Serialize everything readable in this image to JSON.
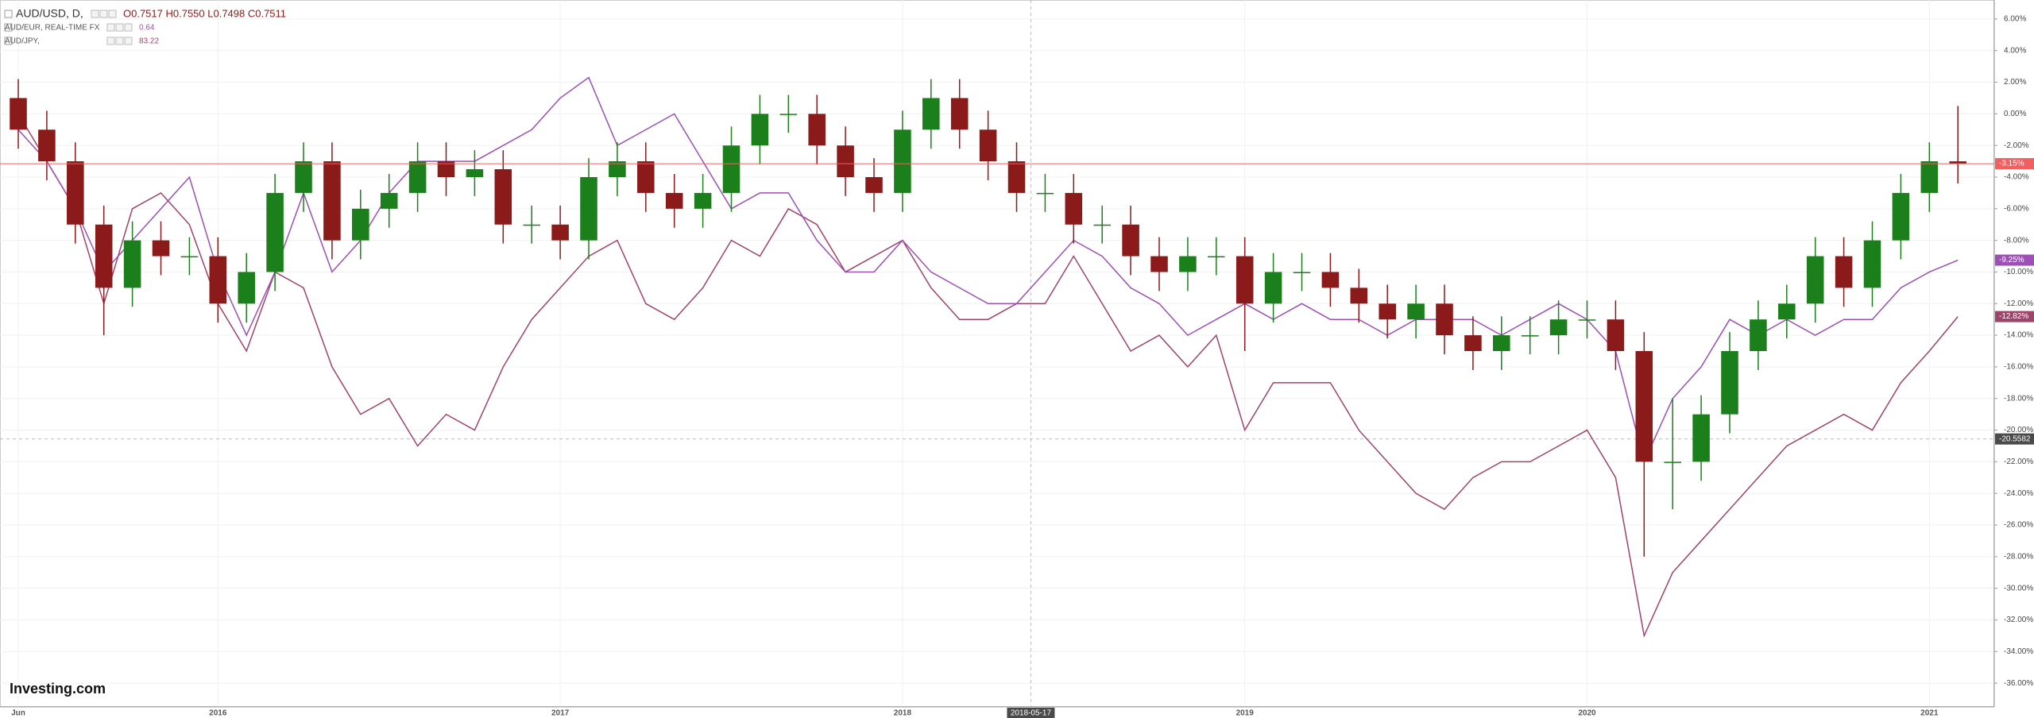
{
  "chart_data": {
    "type": "candlestick",
    "categories": [
      "Jun",
      null,
      null,
      null,
      null,
      null,
      null,
      "2016",
      null,
      null,
      null,
      null,
      null,
      null,
      null,
      null,
      null,
      null,
      null,
      "2017",
      null,
      null,
      null,
      null,
      null,
      null,
      null,
      null,
      null,
      null,
      null,
      "2018",
      null,
      null,
      null,
      null,
      null,
      null,
      null,
      null,
      null,
      null,
      null,
      "2019",
      null,
      null,
      null,
      null,
      null,
      null,
      null,
      null,
      null,
      null,
      null,
      "2020",
      null,
      null,
      null,
      null,
      null,
      null,
      null,
      null,
      null,
      null,
      null,
      "2021",
      null
    ],
    "series": [
      {
        "name": "AUD/USD, D,",
        "type": "candlestick",
        "up_color": "#1b7f1b",
        "down_color": "#8b1a1a",
        "quote": "O0.7517  H0.7550  L0.7498  C0.7511",
        "last_label": "-3.15%",
        "price_line_color": "#f06060",
        "open": [
          1,
          -1,
          -3,
          -7,
          -11,
          -8,
          -9,
          -9,
          -12,
          -10,
          -5,
          -3,
          -8,
          -6,
          -5,
          -3,
          -4,
          -3.5,
          -7,
          -7,
          -8,
          -4,
          -3,
          -5,
          -6,
          -5,
          -2,
          0,
          0,
          -2,
          -4,
          -5,
          -1,
          1,
          -1,
          -3,
          -5,
          -5,
          -7,
          -7,
          -9,
          -10,
          -9,
          -9,
          -12,
          -10,
          -10,
          -11,
          -12,
          -13,
          -12,
          -14,
          -15,
          -14,
          -14,
          -13,
          -13,
          -15,
          -22,
          -22,
          -19,
          -15,
          -13,
          -12,
          -9,
          -11,
          -8,
          -5,
          -3
        ],
        "high": [
          2.2,
          0.2,
          -1.8,
          -5.8,
          -6.8,
          -6.8,
          -7.8,
          -7.8,
          -8.8,
          -3.8,
          -1.8,
          -1.8,
          -4.8,
          -3.8,
          -1.8,
          -1.8,
          -2.3,
          -2.3,
          -5.8,
          -5.8,
          -2.8,
          -1.8,
          -1.8,
          -3.8,
          -3.8,
          -0.8,
          1.2,
          1.2,
          1.2,
          -0.8,
          -2.8,
          0.2,
          2.2,
          2.2,
          0.2,
          -1.8,
          -3.8,
          -3.8,
          -5.8,
          -5.8,
          -7.8,
          -7.8,
          -7.8,
          -7.8,
          -8.8,
          -8.8,
          -8.8,
          -9.8,
          -10.8,
          -10.8,
          -10.8,
          -12.8,
          -12.8,
          -12.8,
          -11.8,
          -11.8,
          -11.8,
          -13.8,
          -18,
          -17.8,
          -13.8,
          -11.8,
          -10.8,
          -7.8,
          -7.8,
          -6.8,
          -3.8,
          -1.8,
          0.5
        ],
        "low": [
          -2.2,
          -4.2,
          -8.2,
          -14,
          -12.2,
          -10.2,
          -10.2,
          -13.2,
          -13.2,
          -11.2,
          -6.2,
          -9.2,
          -9.2,
          -7.2,
          -6.2,
          -5.2,
          -5.2,
          -8.2,
          -8.2,
          -9.2,
          -9.2,
          -5.2,
          -6.2,
          -7.2,
          -7.2,
          -6.2,
          -3.2,
          -1.2,
          -3.2,
          -5.2,
          -6.2,
          -6.2,
          -2.2,
          -2.2,
          -4.2,
          -6.2,
          -6.2,
          -8.2,
          -8.2,
          -10.2,
          -11.2,
          -11.2,
          -10.2,
          -15,
          -13.2,
          -11.2,
          -12.2,
          -13.2,
          -14.2,
          -14.2,
          -15.2,
          -16.2,
          -16.2,
          -15.2,
          -15.2,
          -14.2,
          -16.2,
          -28,
          -25,
          -23.2,
          -20.2,
          -16.2,
          -14.2,
          -13.2,
          -12.2,
          -12.2,
          -9.2,
          -6.2,
          -4.4
        ],
        "close": [
          -1,
          -3,
          -7,
          -11,
          -8,
          -9,
          -9,
          -12,
          -10,
          -5,
          -3,
          -8,
          -6,
          -5,
          -3,
          -4,
          -3.5,
          -7,
          -7,
          -8,
          -4,
          -3,
          -5,
          -6,
          -5,
          -2,
          0,
          0,
          -2,
          -4,
          -5,
          -1,
          1,
          -1,
          -3,
          -5,
          -5,
          -7,
          -7,
          -9,
          -10,
          -9,
          -9,
          -12,
          -10,
          -10,
          -11,
          -12,
          -13,
          -12,
          -14,
          -15,
          -14,
          -14,
          -13,
          -13,
          -15,
          -22,
          -22,
          -19,
          -15,
          -13,
          -12,
          -9,
          -11,
          -8,
          -5,
          -3,
          -3.15
        ]
      },
      {
        "name": "AUD/EUR, REAL-TIME FX",
        "type": "line",
        "color": "#9c4fb5",
        "quote": "0.64",
        "last_label": "-9.25%",
        "values": [
          -1,
          -3,
          -6,
          -10,
          -8,
          -6,
          -4,
          -10,
          -14,
          -10,
          -5,
          -10,
          -8,
          -5,
          -3,
          -3,
          -3,
          -2,
          -1,
          1,
          2.3,
          -2,
          -1,
          0,
          -3,
          -6,
          -5,
          -5,
          -8,
          -10,
          -10,
          -8,
          -10,
          -11,
          -12,
          -12,
          -10,
          -8,
          -9,
          -11,
          -12,
          -14,
          -13,
          -12,
          -13,
          -12,
          -13,
          -13,
          -14,
          -13,
          -13,
          -13,
          -14,
          -13,
          -12,
          -13,
          -15,
          -22,
          -18,
          -16,
          -13,
          -14,
          -13,
          -14,
          -13,
          -13,
          -11,
          -10,
          -9.25
        ]
      },
      {
        "name": "AUD/JPY,",
        "type": "line",
        "color": "#a0436b",
        "quote": "83.22",
        "last_label": "-12.82%",
        "values": [
          0,
          -3,
          -6,
          -12,
          -6,
          -5,
          -7,
          -12,
          -15,
          -10,
          -11,
          -16,
          -19,
          -18,
          -21,
          -19,
          -20,
          -16,
          -13,
          -11,
          -9,
          -8,
          -12,
          -13,
          -11,
          -8,
          -9,
          -6,
          -7,
          -10,
          -9,
          -8,
          -11,
          -13,
          -13,
          -12,
          -12,
          -9,
          -12,
          -15,
          -14,
          -16,
          -14,
          -20,
          -17,
          -17,
          -17,
          -20,
          -22,
          -24,
          -25,
          -23,
          -22,
          -22,
          -21,
          -20,
          -23,
          -33,
          -29,
          -27,
          -25,
          -23,
          -21,
          -20,
          -19,
          -20,
          -17,
          -15,
          -12.82
        ]
      }
    ],
    "ylim": [
      -37.5,
      7.2
    ],
    "yticks": [
      {
        "value": 6,
        "label": "6.00%"
      },
      {
        "value": 4,
        "label": "4.00%"
      },
      {
        "value": 2,
        "label": "2.00%"
      },
      {
        "value": 0,
        "label": "0.00%"
      },
      {
        "value": -2,
        "label": "-2.00%"
      },
      {
        "value": -4,
        "label": "-4.00%"
      },
      {
        "value": -6,
        "label": "-6.00%"
      },
      {
        "value": -8,
        "label": "-8.00%"
      },
      {
        "value": -10,
        "label": "-10.00%"
      },
      {
        "value": -12,
        "label": "-12.00%"
      },
      {
        "value": -14,
        "label": "-14.00%"
      },
      {
        "value": -16,
        "label": "-16.00%"
      },
      {
        "value": -18,
        "label": "-18.00%"
      },
      {
        "value": -20,
        "label": "-20.00%"
      },
      {
        "value": -22,
        "label": "-22.00%"
      },
      {
        "value": -24,
        "label": "-24.00%"
      },
      {
        "value": -26,
        "label": "-26.00%"
      },
      {
        "value": -28,
        "label": "-28.00%"
      },
      {
        "value": -30,
        "label": "-30.00%"
      },
      {
        "value": -32,
        "label": "-32.00%"
      },
      {
        "value": -34,
        "label": "-34.00%"
      },
      {
        "value": -36,
        "label": "-36.00%"
      }
    ],
    "grid": true,
    "crosshair": {
      "x_label": "2018-05-17",
      "y": -20.5582,
      "y_label": "-20.5582"
    },
    "logo": "Investing.com"
  }
}
